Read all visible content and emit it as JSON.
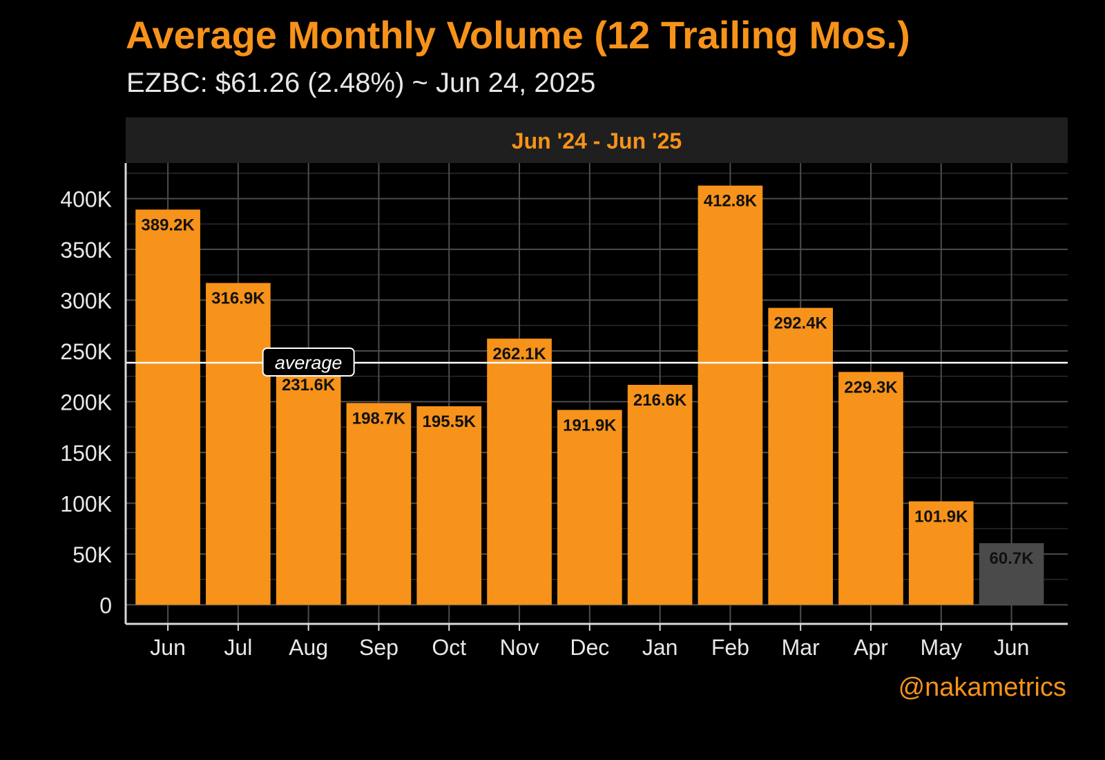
{
  "header": {
    "title": "Average Monthly Volume (12 Trailing Mos.)",
    "subtitle": "EZBC: $61.26 (2.48%) ~ Jun 24, 2025"
  },
  "credit": "@nakametrics",
  "chart_data": {
    "type": "bar",
    "panel_label": "Jun '24 - Jun '25",
    "categories": [
      "Jun",
      "Jul",
      "Aug",
      "Sep",
      "Oct",
      "Nov",
      "Dec",
      "Jan",
      "Feb",
      "Mar",
      "Apr",
      "May",
      "Jun"
    ],
    "values": [
      389200,
      316900,
      231600,
      198700,
      195500,
      262100,
      191900,
      216600,
      412800,
      292400,
      229300,
      101900,
      60700
    ],
    "value_labels": [
      "389.2K",
      "316.9K",
      "231.6K",
      "198.7K",
      "195.5K",
      "262.1K",
      "191.9K",
      "216.6K",
      "412.8K",
      "292.4K",
      "229.3K",
      "101.9K",
      "60.7K"
    ],
    "bar_colors": [
      "#f7931a",
      "#f7931a",
      "#f7931a",
      "#f7931a",
      "#f7931a",
      "#f7931a",
      "#f7931a",
      "#f7931a",
      "#f7931a",
      "#f7931a",
      "#f7931a",
      "#f7931a",
      "#4a4a4a"
    ],
    "average": 238400,
    "average_label": "average",
    "y_ticks": [
      0,
      50000,
      100000,
      150000,
      200000,
      250000,
      300000,
      350000,
      400000
    ],
    "y_tick_labels": [
      "0",
      "50K",
      "100K",
      "150K",
      "200K",
      "250K",
      "300K",
      "350K",
      "400K"
    ],
    "ylim": [
      -18800,
      435000
    ],
    "xlabel": "",
    "ylabel": "",
    "grid": true,
    "colors": {
      "accent": "#f7931a",
      "partial_bar": "#4a4a4a",
      "background": "#000000",
      "panel_strip": "#1f1f1f",
      "grid": "#4d4d4d",
      "average_line": "#ffffff"
    }
  }
}
